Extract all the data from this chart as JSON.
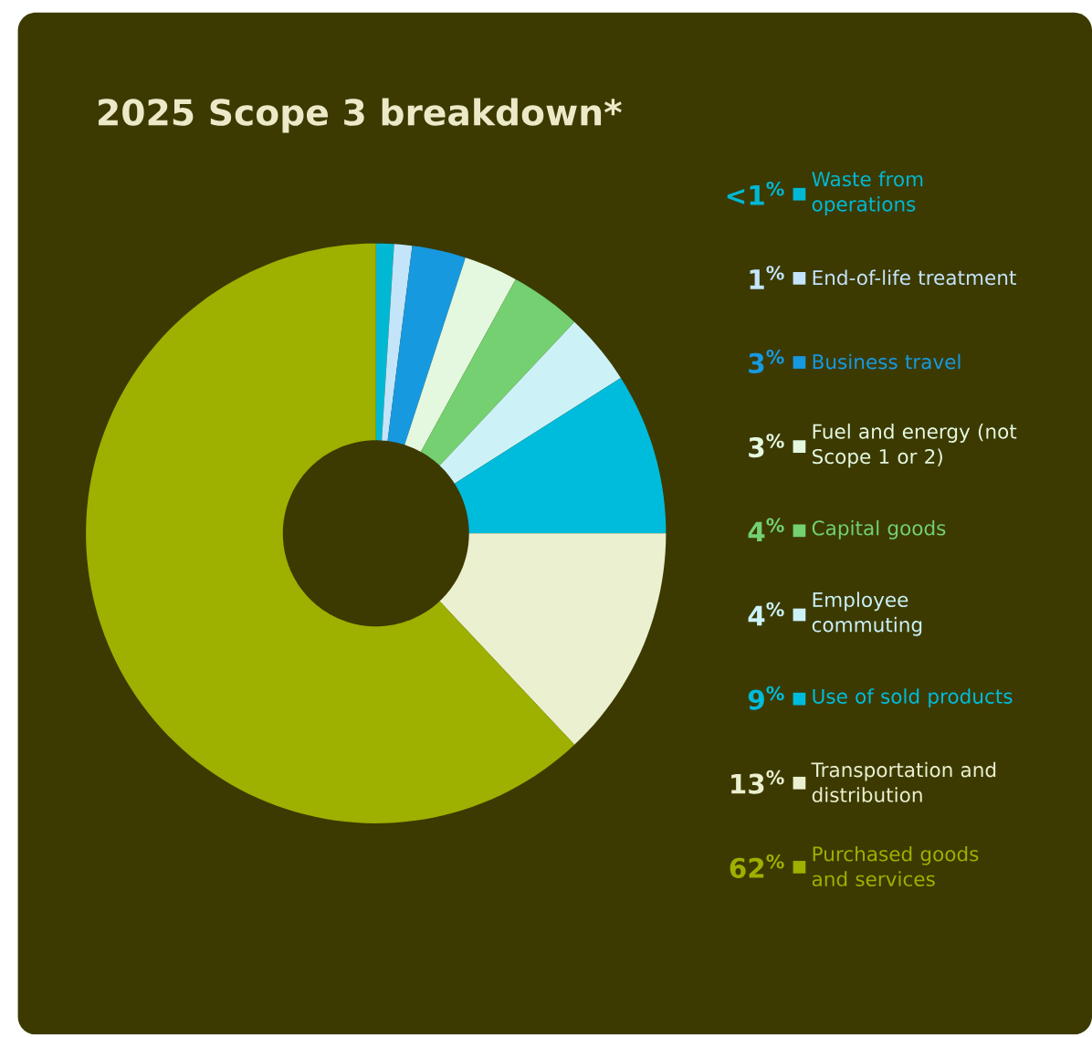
{
  "chart_data": {
    "type": "donut",
    "title": "2025 Scope 3 breakdown*",
    "categories": [
      "Waste from operations",
      "End-of-life treatment",
      "Business travel",
      "Fuel and energy (not Scope 1 or 2)",
      "Capital goods",
      "Employee commuting",
      "Use of sold products",
      "Transportation and distribution",
      "Purchased goods and services"
    ],
    "values": [
      1,
      1,
      3,
      3,
      4,
      4,
      9,
      13,
      62
    ],
    "value_labels": [
      "<1$^{%}$",
      "1$^{%}$",
      "3$^{%}$",
      "3$^{%}$",
      "4$^{%}$",
      "4$^{%}$",
      "9$^{%}$",
      "13$^{%}$",
      "62$^{%}$"
    ],
    "colors": [
      "#00b8d4",
      "#c4e4fa",
      "#1799e0",
      "#e4f8e0",
      "#74d070",
      "#ccf2f8",
      "#00bcdc",
      "#ebf0d0",
      "#9eb000"
    ],
    "legend": "right"
  }
}
